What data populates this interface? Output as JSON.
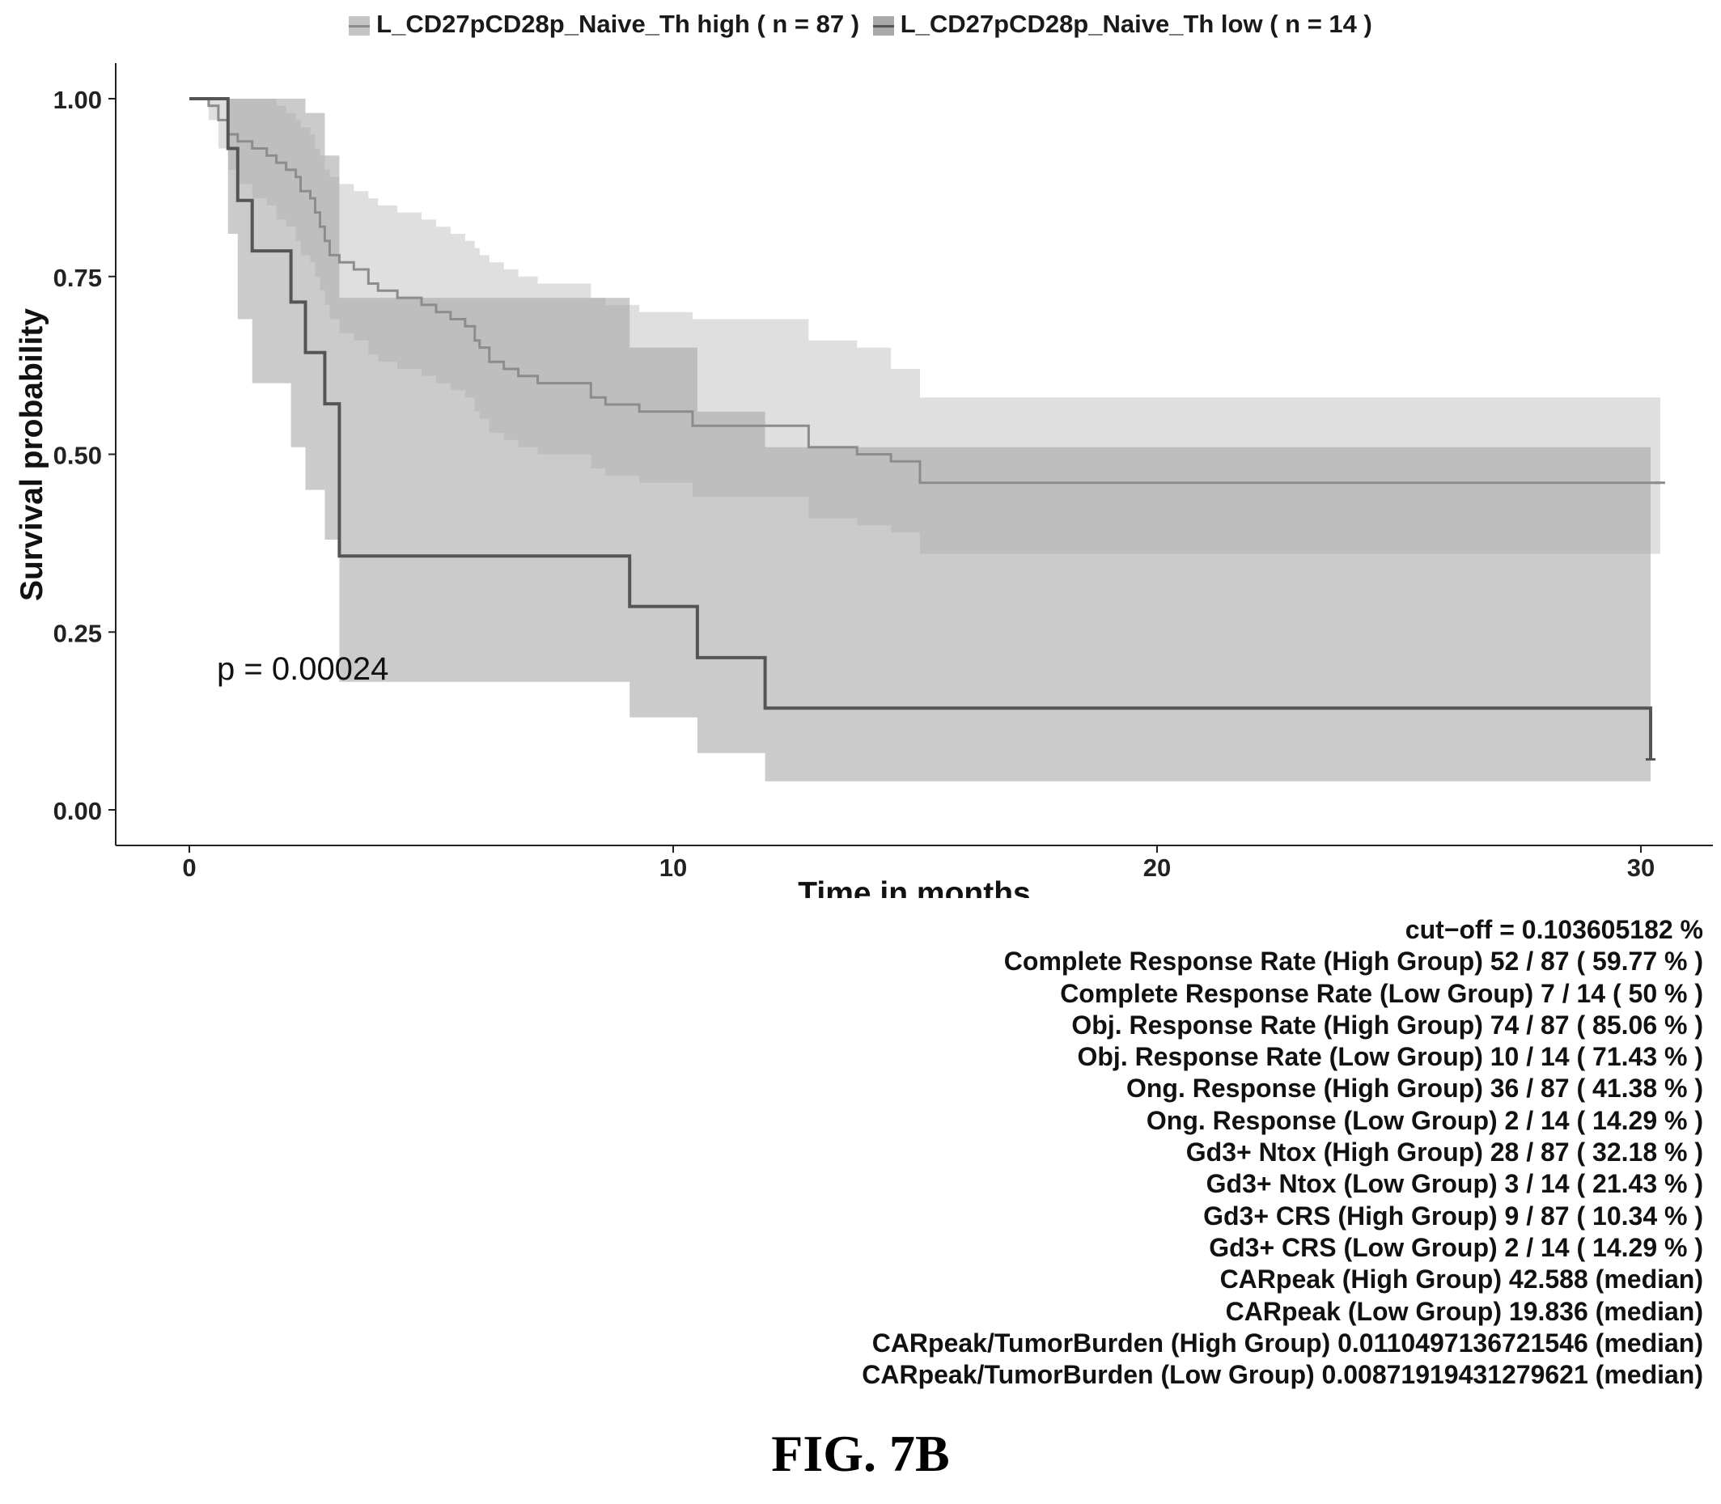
{
  "chart_data": {
    "type": "line",
    "xlabel": "Time in months",
    "ylabel": "Survival probability",
    "xlim": [
      0,
      30.5
    ],
    "ylim": [
      0,
      1.04
    ],
    "xticks": [
      "0",
      "10",
      "20",
      "30"
    ],
    "yticks": [
      "0.00",
      "0.25",
      "0.50",
      "0.75",
      "1.00"
    ],
    "grid": false,
    "legend_position": "top",
    "annotation": "p = 0.00024",
    "series": [
      {
        "name": "L_CD27pCD28p_Naive_Th high ( n = 87 )",
        "color": "#8c8c8c",
        "band_color": "#c4c4c4",
        "x": [
          0,
          0.4,
          0.6,
          0.8,
          1.0,
          1.3,
          1.6,
          1.8,
          2.0,
          2.2,
          2.3,
          2.5,
          2.6,
          2.7,
          2.8,
          2.9,
          3.1,
          3.4,
          3.7,
          3.9,
          4.3,
          4.8,
          5.1,
          5.4,
          5.7,
          5.9,
          6.0,
          6.2,
          6.5,
          6.8,
          7.2,
          8.3,
          8.6,
          9.3,
          10.4,
          12.8,
          13.8,
          14.5,
          15.1,
          30.4
        ],
        "y": [
          1.0,
          0.99,
          0.97,
          0.95,
          0.94,
          0.93,
          0.92,
          0.91,
          0.9,
          0.89,
          0.87,
          0.86,
          0.84,
          0.82,
          0.8,
          0.78,
          0.77,
          0.76,
          0.74,
          0.73,
          0.72,
          0.71,
          0.7,
          0.69,
          0.68,
          0.66,
          0.65,
          0.63,
          0.62,
          0.61,
          0.6,
          0.58,
          0.57,
          0.56,
          0.54,
          0.51,
          0.5,
          0.49,
          0.46,
          0.46
        ],
        "ci_upper": [
          1.0,
          1.0,
          1.0,
          1.0,
          1.0,
          1.0,
          1.0,
          0.99,
          0.98,
          0.97,
          0.96,
          0.95,
          0.93,
          0.92,
          0.9,
          0.89,
          0.88,
          0.87,
          0.86,
          0.85,
          0.84,
          0.83,
          0.82,
          0.81,
          0.8,
          0.79,
          0.78,
          0.77,
          0.76,
          0.75,
          0.74,
          0.72,
          0.71,
          0.7,
          0.69,
          0.66,
          0.65,
          0.62,
          0.58,
          0.58
        ],
        "ci_lower": [
          1.0,
          0.97,
          0.93,
          0.9,
          0.88,
          0.86,
          0.85,
          0.83,
          0.82,
          0.8,
          0.78,
          0.77,
          0.75,
          0.73,
          0.71,
          0.69,
          0.67,
          0.66,
          0.64,
          0.63,
          0.62,
          0.61,
          0.6,
          0.59,
          0.58,
          0.56,
          0.55,
          0.53,
          0.52,
          0.51,
          0.5,
          0.48,
          0.47,
          0.46,
          0.44,
          0.41,
          0.4,
          0.39,
          0.36,
          0.36
        ]
      },
      {
        "name": "L_CD27pCD28p_Naive_Th low ( n = 14 )",
        "color": "#555555",
        "band_color": "#a9a9a9",
        "x": [
          0,
          0.4,
          0.8,
          1.0,
          1.3,
          2.1,
          2.4,
          2.8,
          3.1,
          7.3,
          9.1,
          10.5,
          11.9,
          30.2
        ],
        "y": [
          1.0,
          1.0,
          0.93,
          0.857,
          0.786,
          0.714,
          0.643,
          0.571,
          0.357,
          0.357,
          0.286,
          0.214,
          0.143,
          0.071
        ],
        "ci_upper": [
          1.0,
          1.0,
          1.0,
          1.0,
          1.0,
          1.0,
          0.98,
          0.92,
          0.72,
          0.72,
          0.65,
          0.56,
          0.51,
          0.36
        ],
        "ci_lower": [
          1.0,
          1.0,
          0.81,
          0.69,
          0.6,
          0.51,
          0.45,
          0.38,
          0.18,
          0.18,
          0.13,
          0.08,
          0.04,
          0.01
        ]
      }
    ]
  },
  "stats": [
    "cut−off = 0.103605182 %",
    "Complete Response Rate (High Group) 52 / 87 ( 59.77 % )",
    "Complete Response Rate (Low Group) 7 / 14 ( 50 % )",
    "Obj. Response Rate (High Group) 74 / 87 ( 85.06 % )",
    "Obj. Response Rate (Low Group) 10 / 14 ( 71.43 % )",
    "Ong. Response (High Group) 36 / 87 ( 41.38 % )",
    "Ong. Response (Low Group) 2 / 14 ( 14.29 % )",
    "Gd3+ Ntox (High Group) 28 / 87 ( 32.18 % )",
    "Gd3+ Ntox (Low Group) 3 / 14 ( 21.43 % )",
    "Gd3+ CRS (High Group) 9 / 87 ( 10.34 % )",
    "Gd3+ CRS (Low Group) 2 / 14 ( 14.29 % )",
    "CARpeak (High Group) 42.588 (median)",
    "CARpeak (Low Group) 19.836 (median)",
    "CARpeak/TumorBurden (High Group) 0.0110497136721546 (median)",
    "CARpeak/TumorBurden (Low Group) 0.00871919431279621 (median)"
  ],
  "figure_label": "FIG. 7B"
}
